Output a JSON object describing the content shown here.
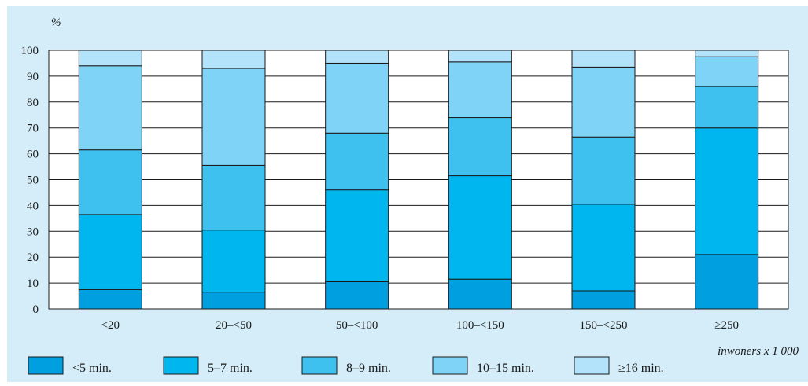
{
  "chart_data": {
    "type": "bar",
    "stacked": true,
    "ylabel": "%",
    "xlabel": "inwoners x 1 000",
    "ylim": [
      0,
      100
    ],
    "yticks": [
      0,
      10,
      20,
      30,
      40,
      50,
      60,
      70,
      80,
      90,
      100
    ],
    "grid": true,
    "legend_position": "bottom",
    "categories": [
      "<20",
      "20–<50",
      "50–<100",
      "100–<150",
      "150–<250",
      "≥250"
    ],
    "series": [
      {
        "name": "<5 min.",
        "color": "#009fe0",
        "values": [
          7.5,
          6.5,
          10.5,
          11.5,
          7,
          21
        ]
      },
      {
        "name": "5–7 min.",
        "color": "#00b6ee",
        "values": [
          29,
          24,
          35.5,
          40,
          33.5,
          49
        ]
      },
      {
        "name": "8–9 min.",
        "color": "#3fc1ef",
        "values": [
          25,
          25,
          22,
          22.5,
          26,
          16
        ]
      },
      {
        "name": "10–15 min.",
        "color": "#7fd3f6",
        "values": [
          32.5,
          37.5,
          27,
          21.5,
          27,
          11.5
        ]
      },
      {
        "name": "≥16 min.",
        "color": "#b3e3fa",
        "values": [
          6,
          7,
          5,
          4.5,
          6.5,
          2.5
        ]
      }
    ]
  }
}
